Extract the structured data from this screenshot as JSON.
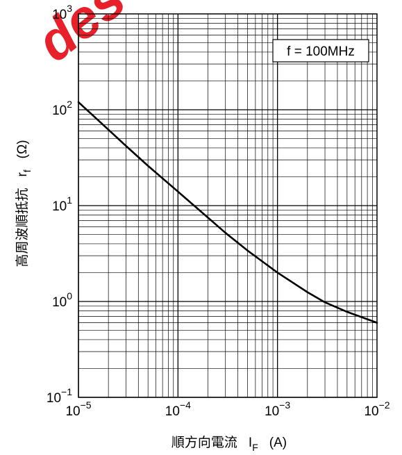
{
  "chart_data": {
    "type": "line",
    "title": "",
    "xlabel": "順方向電流",
    "xlabel_symbol": "I",
    "xlabel_symbol_sub": "F",
    "xlabel_unit": "(A)",
    "ylabel": "高周波順抵抗",
    "ylabel_symbol": "r",
    "ylabel_symbol_sub": "f",
    "ylabel_unit": "(Ω)",
    "x_scale": "log",
    "y_scale": "log",
    "xlim": [
      1e-05,
      0.01
    ],
    "ylim": [
      0.1,
      1000
    ],
    "x_ticks": [
      {
        "base": "10",
        "exp": "−5",
        "value": 1e-05
      },
      {
        "base": "10",
        "exp": "−4",
        "value": 0.0001
      },
      {
        "base": "10",
        "exp": "−3",
        "value": 0.001
      },
      {
        "base": "10",
        "exp": "−2",
        "value": 0.01
      }
    ],
    "y_ticks": [
      {
        "base": "10",
        "exp": "−1",
        "value": 0.1
      },
      {
        "base": "10",
        "exp": "0",
        "value": 1
      },
      {
        "base": "10",
        "exp": "1",
        "value": 10
      },
      {
        "base": "10",
        "exp": "2",
        "value": 100
      },
      {
        "base": "10",
        "exp": "3",
        "value": 1000
      }
    ],
    "grid": true,
    "annotation": "f = 100MHz",
    "annotation_position": "top-right",
    "series": [
      {
        "x": [
          1e-05,
          2e-05,
          3e-05,
          5e-05,
          0.0001,
          0.0002,
          0.0003,
          0.0005,
          0.001,
          0.002,
          0.003,
          0.005,
          0.01
        ],
        "y": [
          120,
          62,
          42,
          26,
          14,
          7.5,
          5.2,
          3.4,
          2.0,
          1.25,
          0.98,
          0.78,
          0.6
        ]
      }
    ]
  },
  "watermark_text": "des",
  "colors": {
    "line": "#000000",
    "grid": "#000000",
    "watermark": "#e8202a"
  }
}
